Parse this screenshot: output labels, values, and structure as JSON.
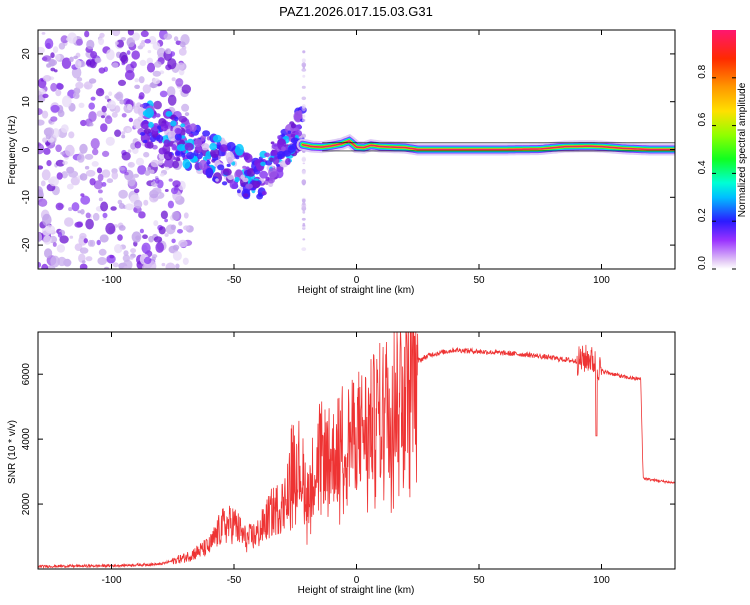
{
  "title": "PAZ1.2026.017.15.03.G31",
  "colors": {
    "line": "#ee3333",
    "axis": "#000000",
    "ridge": "#e8285a",
    "cloud_light": "#d9c2f2",
    "cloud_dark": "#7a1fe0"
  },
  "chart_data": [
    {
      "type": "heatmap",
      "name": "spectrogram",
      "xlabel": "Height of straight line (km)",
      "ylabel": "Frequency (Hz)",
      "xlim": [
        -130,
        130
      ],
      "ylim": [
        -25,
        25
      ],
      "xticks": [
        -100,
        -50,
        0,
        50,
        100
      ],
      "yticks": [
        -20,
        -10,
        0,
        10,
        20
      ],
      "ridge": {
        "x": [
          -22,
          -18,
          -14,
          -10,
          -6,
          -3,
          0,
          3,
          6,
          10,
          15,
          20,
          25,
          40,
          60,
          75,
          85,
          95,
          100,
          110,
          120,
          130
        ],
        "y": [
          1.0,
          0.6,
          0.5,
          0.8,
          1.2,
          1.8,
          0.5,
          0.4,
          0.9,
          0.6,
          0.5,
          0.4,
          0.0,
          0.0,
          0.0,
          0.1,
          0.6,
          0.7,
          0.6,
          0.2,
          0.0,
          0.0
        ]
      },
      "colorbar": {
        "label": "Normalized spectral amplitude",
        "range": [
          0,
          1
        ],
        "ticks": [
          "0.0",
          "0.2",
          "0.4",
          "0.6",
          "0.8"
        ]
      }
    },
    {
      "type": "line",
      "name": "snr",
      "xlabel": "Height of straight line (km)",
      "ylabel": "SNR (10 * v/v)",
      "xlim": [
        -130,
        130
      ],
      "ylim": [
        0,
        7300
      ],
      "xticks": [
        -100,
        -50,
        0,
        50,
        100
      ],
      "yticks": [
        2000,
        4000,
        6000
      ],
      "envelope": {
        "x": [
          -130,
          -100,
          -80,
          -70,
          -60,
          -55,
          -50,
          -45,
          -40,
          -35,
          -30,
          -27,
          -25,
          -20,
          -15,
          -10,
          -5,
          -2,
          0,
          5,
          10,
          15,
          20,
          25,
          30,
          40,
          50,
          60,
          70,
          80,
          90,
          95,
          98,
          100,
          105,
          110,
          116,
          117,
          120,
          125,
          130
        ],
        "y": [
          80,
          100,
          150,
          350,
          700,
          1300,
          1400,
          900,
          1100,
          1700,
          2000,
          3000,
          3600,
          2400,
          3600,
          3400,
          4100,
          4000,
          4300,
          4400,
          4900,
          5300,
          6200,
          6400,
          6600,
          6750,
          6700,
          6650,
          6600,
          6500,
          6400,
          6500,
          6300,
          6100,
          6000,
          5900,
          5850,
          2800,
          2750,
          2700,
          2650
        ]
      }
    }
  ]
}
